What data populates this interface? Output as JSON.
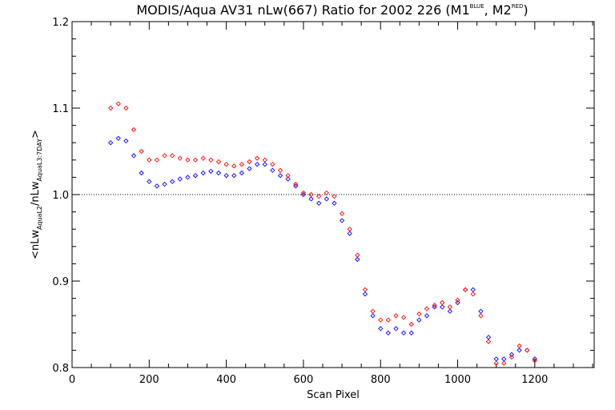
{
  "chart_data": {
    "type": "scatter",
    "title": {
      "main": "MODIS/Aqua AV31 nLw(667) Ratio for 2002 226 (M1",
      "sup1": "BLUE",
      "mid": ", M2",
      "sup2": "RED",
      "end": ")"
    },
    "xlabel": "Scan Pixel",
    "ylabel": {
      "p1": "<nLw",
      "s1": "AquaL2",
      "p2": "/nLw",
      "s2": "AquaL3:7DAY",
      "p3": ">"
    },
    "xlim": [
      0,
      1354
    ],
    "ylim": [
      0.8,
      1.2
    ],
    "xticks": [
      0,
      200,
      400,
      600,
      800,
      1000,
      1200
    ],
    "xtick_labels": [
      "0",
      "200",
      "400",
      "600",
      "800",
      "1000",
      "1200"
    ],
    "yticks": [
      0.8,
      0.9,
      1.0,
      1.1,
      1.2
    ],
    "ytick_labels": [
      "0.8",
      "0.9",
      "1.0",
      "1.1",
      "1.2"
    ],
    "reference_line": 1.0,
    "grid": false,
    "series": [
      {
        "color": "#0000ff",
        "marker": "diamond",
        "points": [
          [
            100,
            1.06
          ],
          [
            120,
            1.065
          ],
          [
            140,
            1.062
          ],
          [
            160,
            1.045
          ],
          [
            180,
            1.025
          ],
          [
            200,
            1.015
          ],
          [
            220,
            1.01
          ],
          [
            240,
            1.012
          ],
          [
            260,
            1.015
          ],
          [
            280,
            1.018
          ],
          [
            300,
            1.02
          ],
          [
            320,
            1.022
          ],
          [
            340,
            1.025
          ],
          [
            360,
            1.027
          ],
          [
            380,
            1.025
          ],
          [
            400,
            1.022
          ],
          [
            420,
            1.022
          ],
          [
            440,
            1.025
          ],
          [
            460,
            1.03
          ],
          [
            480,
            1.035
          ],
          [
            500,
            1.035
          ],
          [
            520,
            1.028
          ],
          [
            540,
            1.022
          ],
          [
            560,
            1.018
          ],
          [
            580,
            1.01
          ],
          [
            600,
            1.0
          ],
          [
            620,
            0.995
          ],
          [
            640,
            0.99
          ],
          [
            660,
            0.995
          ],
          [
            680,
            0.99
          ],
          [
            700,
            0.97
          ],
          [
            720,
            0.955
          ],
          [
            740,
            0.925
          ],
          [
            760,
            0.885
          ],
          [
            780,
            0.86
          ],
          [
            800,
            0.845
          ],
          [
            820,
            0.84
          ],
          [
            840,
            0.845
          ],
          [
            860,
            0.84
          ],
          [
            880,
            0.84
          ],
          [
            900,
            0.855
          ],
          [
            920,
            0.86
          ],
          [
            940,
            0.87
          ],
          [
            960,
            0.87
          ],
          [
            980,
            0.865
          ],
          [
            1000,
            0.875
          ],
          [
            1020,
            0.89
          ],
          [
            1040,
            0.89
          ],
          [
            1060,
            0.865
          ],
          [
            1080,
            0.835
          ],
          [
            1100,
            0.81
          ],
          [
            1120,
            0.81
          ],
          [
            1140,
            0.815
          ],
          [
            1160,
            0.82
          ],
          [
            1180,
            0.82
          ],
          [
            1200,
            0.81
          ]
        ]
      },
      {
        "color": "#ff0000",
        "marker": "diamond",
        "points": [
          [
            100,
            1.1
          ],
          [
            120,
            1.105
          ],
          [
            140,
            1.1
          ],
          [
            160,
            1.075
          ],
          [
            180,
            1.05
          ],
          [
            200,
            1.04
          ],
          [
            220,
            1.04
          ],
          [
            240,
            1.045
          ],
          [
            260,
            1.045
          ],
          [
            280,
            1.042
          ],
          [
            300,
            1.04
          ],
          [
            320,
            1.04
          ],
          [
            340,
            1.042
          ],
          [
            360,
            1.04
          ],
          [
            380,
            1.038
          ],
          [
            400,
            1.035
          ],
          [
            420,
            1.033
          ],
          [
            440,
            1.035
          ],
          [
            460,
            1.038
          ],
          [
            480,
            1.042
          ],
          [
            500,
            1.04
          ],
          [
            520,
            1.035
          ],
          [
            540,
            1.028
          ],
          [
            560,
            1.022
          ],
          [
            580,
            1.012
          ],
          [
            600,
            1.002
          ],
          [
            620,
            1.0
          ],
          [
            640,
            0.998
          ],
          [
            660,
            1.002
          ],
          [
            680,
            0.998
          ],
          [
            700,
            0.978
          ],
          [
            720,
            0.96
          ],
          [
            740,
            0.93
          ],
          [
            760,
            0.89
          ],
          [
            780,
            0.865
          ],
          [
            800,
            0.855
          ],
          [
            820,
            0.855
          ],
          [
            840,
            0.86
          ],
          [
            860,
            0.858
          ],
          [
            880,
            0.85
          ],
          [
            900,
            0.862
          ],
          [
            920,
            0.868
          ],
          [
            940,
            0.872
          ],
          [
            960,
            0.875
          ],
          [
            980,
            0.87
          ],
          [
            1000,
            0.878
          ],
          [
            1020,
            0.89
          ],
          [
            1040,
            0.885
          ],
          [
            1060,
            0.86
          ],
          [
            1080,
            0.83
          ],
          [
            1100,
            0.805
          ],
          [
            1120,
            0.805
          ],
          [
            1140,
            0.812
          ],
          [
            1160,
            0.825
          ],
          [
            1180,
            0.82
          ],
          [
            1200,
            0.808
          ]
        ]
      }
    ]
  }
}
